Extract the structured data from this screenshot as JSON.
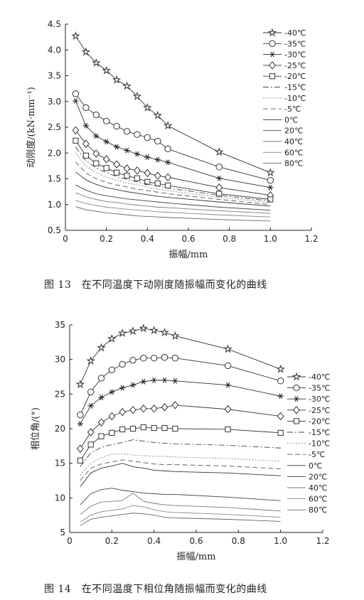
{
  "chart_data": [
    {
      "type": "line",
      "xlabel": "振幅/mm",
      "ylabel": "动刚度/(kN·mm⁻¹)",
      "xlim": [
        0,
        1.2
      ],
      "ylim": [
        0.5,
        4.5
      ],
      "xticks": [
        "0",
        "0.2",
        "0.4",
        "0.6",
        "0.8",
        "1.0",
        "1.2"
      ],
      "yticks": [
        "0.5",
        "1.0",
        "1.5",
        "2.0",
        "2.5",
        "3.0",
        "3.5",
        "4.0",
        "4.5"
      ],
      "legend_position": "right",
      "x": [
        0.05,
        0.1,
        0.15,
        0.2,
        0.25,
        0.3,
        0.35,
        0.4,
        0.45,
        0.5,
        0.75,
        1.0
      ],
      "series": [
        {
          "name": "-40℃",
          "marker": "star",
          "dash": "solid",
          "values": [
            4.27,
            3.96,
            3.75,
            3.6,
            3.42,
            3.3,
            3.1,
            2.88,
            2.73,
            2.53,
            2.02,
            1.62
          ]
        },
        {
          "name": "-35℃",
          "marker": "circle",
          "dash": "solid",
          "values": [
            3.15,
            2.88,
            2.74,
            2.62,
            2.52,
            2.42,
            2.36,
            2.3,
            2.23,
            2.08,
            1.73,
            1.47
          ]
        },
        {
          "name": "-30℃",
          "marker": "asterisk",
          "dash": "solid",
          "values": [
            3.01,
            2.53,
            2.33,
            2.22,
            2.12,
            2.05,
            1.98,
            1.92,
            1.87,
            1.82,
            1.51,
            1.33
          ]
        },
        {
          "name": "-25℃",
          "marker": "diamond",
          "dash": "solid",
          "values": [
            2.44,
            2.18,
            1.99,
            1.88,
            1.78,
            1.7,
            1.66,
            1.61,
            1.56,
            1.53,
            1.33,
            1.18
          ]
        },
        {
          "name": "-20℃",
          "marker": "square",
          "dash": "solid",
          "values": [
            2.24,
            1.95,
            1.8,
            1.71,
            1.62,
            1.56,
            1.51,
            1.44,
            1.41,
            1.37,
            1.21,
            1.1
          ]
        },
        {
          "name": "-15℃",
          "marker": "none",
          "dash": "dashdot",
          "values": [
            2.12,
            1.85,
            1.71,
            1.62,
            1.54,
            1.49,
            1.44,
            1.4,
            1.36,
            1.32,
            1.18,
            1.07
          ]
        },
        {
          "name": "-10℃",
          "marker": "none",
          "dash": "dotted",
          "values": [
            2.0,
            1.75,
            1.62,
            1.53,
            1.47,
            1.42,
            1.38,
            1.34,
            1.3,
            1.27,
            1.14,
            1.04
          ]
        },
        {
          "name": "-5℃",
          "marker": "none",
          "dash": "dashed",
          "values": [
            1.83,
            1.61,
            1.5,
            1.43,
            1.38,
            1.34,
            1.3,
            1.27,
            1.24,
            1.21,
            1.1,
            1.0
          ]
        },
        {
          "name": "0℃",
          "marker": "none",
          "dash": "solid",
          "values": [
            1.63,
            1.48,
            1.39,
            1.33,
            1.29,
            1.25,
            1.22,
            1.19,
            1.16,
            1.14,
            1.05,
            0.97
          ]
        },
        {
          "name": "20℃",
          "marker": "none",
          "dash": "solid",
          "values": [
            1.38,
            1.28,
            1.21,
            1.17,
            1.14,
            1.11,
            1.09,
            1.07,
            1.05,
            1.03,
            0.95,
            0.89
          ]
        },
        {
          "name": "40℃",
          "marker": "none",
          "dash": "solid",
          "values": [
            1.23,
            1.15,
            1.1,
            1.06,
            1.04,
            1.01,
            0.99,
            0.97,
            0.95,
            0.94,
            0.88,
            0.83
          ]
        },
        {
          "name": "60℃",
          "marker": "none",
          "dash": "solid",
          "values": [
            1.08,
            1.02,
            0.98,
            0.95,
            0.93,
            0.91,
            0.89,
            0.88,
            0.86,
            0.85,
            0.8,
            0.76
          ]
        },
        {
          "name": "80℃",
          "marker": "none",
          "dash": "solid",
          "values": [
            0.96,
            0.9,
            0.87,
            0.84,
            0.82,
            0.8,
            0.78,
            0.77,
            0.76,
            0.75,
            0.71,
            0.68
          ]
        }
      ]
    },
    {
      "type": "line",
      "xlabel": "振幅/mm",
      "ylabel": "相位角/(°)",
      "xlim": [
        0,
        1.2
      ],
      "ylim": [
        5,
        35
      ],
      "xticks": [
        "0",
        "0.2",
        "0.4",
        "0.6",
        "0.8",
        "1.0",
        "1.2"
      ],
      "yticks": [
        "5",
        "10",
        "15",
        "20",
        "25",
        "30",
        "35"
      ],
      "legend_position": "right",
      "x": [
        0.05,
        0.1,
        0.15,
        0.2,
        0.25,
        0.3,
        0.35,
        0.4,
        0.45,
        0.5,
        0.75,
        1.0
      ],
      "series": [
        {
          "name": "-40℃",
          "marker": "star",
          "dash": "solid",
          "values": [
            26.4,
            29.8,
            31.7,
            33.0,
            33.8,
            34.1,
            34.5,
            34.2,
            33.9,
            33.4,
            31.5,
            28.6
          ]
        },
        {
          "name": "-35℃",
          "marker": "circle",
          "dash": "solid",
          "values": [
            22.0,
            25.3,
            27.3,
            28.5,
            29.3,
            29.9,
            30.2,
            30.2,
            30.3,
            30.2,
            29.1,
            26.9
          ]
        },
        {
          "name": "-30℃",
          "marker": "asterisk",
          "dash": "solid",
          "values": [
            20.7,
            23.3,
            24.5,
            25.3,
            25.9,
            26.3,
            26.8,
            27.0,
            27.0,
            26.9,
            26.3,
            24.7
          ]
        },
        {
          "name": "-25℃",
          "marker": "diamond",
          "dash": "solid",
          "values": [
            17.1,
            19.5,
            20.9,
            21.8,
            22.4,
            22.7,
            22.9,
            22.9,
            23.1,
            23.4,
            22.8,
            21.8
          ]
        },
        {
          "name": "-20℃",
          "marker": "square",
          "dash": "solid",
          "values": [
            15.4,
            17.7,
            18.9,
            19.4,
            19.9,
            20.0,
            20.2,
            20.1,
            20.1,
            20.0,
            19.9,
            19.4
          ]
        },
        {
          "name": "-15℃",
          "marker": "none",
          "dash": "dashdot",
          "values": [
            14.5,
            16.5,
            17.3,
            17.7,
            18.0,
            18.4,
            18.2,
            18.0,
            17.9,
            17.8,
            17.6,
            17.2
          ]
        },
        {
          "name": "-10℃",
          "marker": "none",
          "dash": "dotted",
          "values": [
            13.3,
            15.0,
            15.8,
            16.3,
            16.4,
            16.2,
            16.1,
            16.0,
            16.0,
            15.9,
            15.7,
            15.3
          ]
        },
        {
          "name": "-5℃",
          "marker": "none",
          "dash": "dashed",
          "values": [
            12.5,
            14.3,
            14.9,
            15.2,
            15.5,
            15.3,
            15.1,
            14.9,
            14.8,
            14.8,
            14.6,
            14.2
          ]
        },
        {
          "name": "0℃",
          "marker": "none",
          "dash": "solid",
          "values": [
            11.6,
            13.6,
            14.3,
            14.6,
            15.0,
            14.5,
            14.3,
            14.0,
            13.9,
            13.8,
            13.6,
            13.2
          ]
        },
        {
          "name": "20℃",
          "marker": "none",
          "dash": "solid",
          "values": [
            9.0,
            10.6,
            11.2,
            11.4,
            11.1,
            10.9,
            10.7,
            10.6,
            10.5,
            10.5,
            10.1,
            9.6
          ]
        },
        {
          "name": "40℃",
          "marker": "none",
          "dash": "solid",
          "values": [
            7.6,
            8.8,
            9.4,
            9.5,
            9.6,
            10.7,
            9.5,
            9.2,
            9.0,
            8.9,
            8.6,
            8.1
          ]
        },
        {
          "name": "60℃",
          "marker": "none",
          "dash": "solid",
          "values": [
            6.5,
            7.5,
            8.0,
            8.2,
            8.4,
            8.9,
            8.7,
            8.3,
            8.0,
            7.9,
            7.6,
            7.2
          ]
        },
        {
          "name": "80℃",
          "marker": "none",
          "dash": "solid",
          "values": [
            6.0,
            6.9,
            7.2,
            7.4,
            7.6,
            7.8,
            7.7,
            7.5,
            7.2,
            7.1,
            6.9,
            6.6
          ]
        }
      ]
    }
  ],
  "captions": {
    "fig13": "图 13　在不同温度下动刚度随振幅而变化的曲线",
    "fig14": "图 14　在不同温度下相位角随振幅而变化的曲线"
  }
}
